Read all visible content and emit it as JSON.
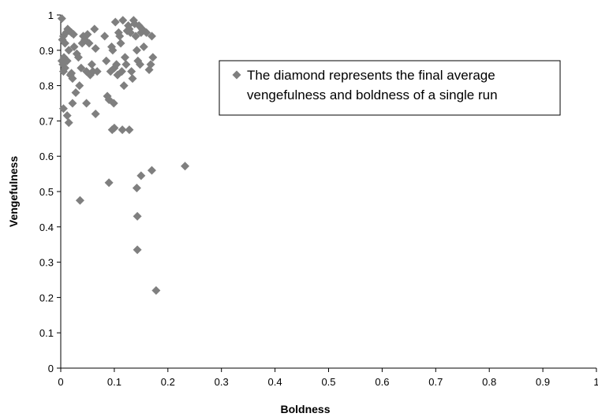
{
  "chart_data": {
    "type": "scatter",
    "title": "",
    "xlabel": "Boldness",
    "ylabel": "Vengefulness",
    "xlim": [
      0,
      1
    ],
    "ylim": [
      0,
      1
    ],
    "x_ticks": [
      "0",
      "0.1",
      "0.2",
      "0.3",
      "0.4",
      "0.5",
      "0.6",
      "0.7",
      "0.8",
      "0.9",
      "1"
    ],
    "y_ticks": [
      "0",
      "0.1",
      "0.2",
      "0.3",
      "0.4",
      "0.5",
      "0.6",
      "0.7",
      "0.8",
      "0.9",
      "1"
    ],
    "grid": false,
    "legend_position": "top-right",
    "legend_lines": [
      "The diamond represents the final average",
      "vengefulness and boldness of a single run"
    ],
    "marker": "diamond",
    "marker_color": "#7f7f7f",
    "points": [
      {
        "x": 0.002,
        "y": 0.99
      },
      {
        "x": 0.003,
        "y": 0.93
      },
      {
        "x": 0.005,
        "y": 0.94
      },
      {
        "x": 0.008,
        "y": 0.92
      },
      {
        "x": 0.01,
        "y": 0.95
      },
      {
        "x": 0.013,
        "y": 0.96
      },
      {
        "x": 0.016,
        "y": 0.955
      },
      {
        "x": 0.02,
        "y": 0.95
      },
      {
        "x": 0.024,
        "y": 0.945
      },
      {
        "x": 0.002,
        "y": 0.87
      },
      {
        "x": 0.004,
        "y": 0.86
      },
      {
        "x": 0.006,
        "y": 0.88
      },
      {
        "x": 0.008,
        "y": 0.85
      },
      {
        "x": 0.005,
        "y": 0.84
      },
      {
        "x": 0.012,
        "y": 0.87
      },
      {
        "x": 0.015,
        "y": 0.9
      },
      {
        "x": 0.018,
        "y": 0.83
      },
      {
        "x": 0.02,
        "y": 0.835
      },
      {
        "x": 0.022,
        "y": 0.82
      },
      {
        "x": 0.025,
        "y": 0.91
      },
      {
        "x": 0.028,
        "y": 0.78
      },
      {
        "x": 0.03,
        "y": 0.89
      },
      {
        "x": 0.033,
        "y": 0.88
      },
      {
        "x": 0.035,
        "y": 0.8
      },
      {
        "x": 0.038,
        "y": 0.85
      },
      {
        "x": 0.04,
        "y": 0.92
      },
      {
        "x": 0.042,
        "y": 0.94
      },
      {
        "x": 0.045,
        "y": 0.93
      },
      {
        "x": 0.048,
        "y": 0.84
      },
      {
        "x": 0.05,
        "y": 0.945
      },
      {
        "x": 0.053,
        "y": 0.92
      },
      {
        "x": 0.055,
        "y": 0.83
      },
      {
        "x": 0.058,
        "y": 0.86
      },
      {
        "x": 0.06,
        "y": 0.84
      },
      {
        "x": 0.063,
        "y": 0.96
      },
      {
        "x": 0.065,
        "y": 0.905
      },
      {
        "x": 0.068,
        "y": 0.84
      },
      {
        "x": 0.005,
        "y": 0.735
      },
      {
        "x": 0.012,
        "y": 0.715
      },
      {
        "x": 0.015,
        "y": 0.695
      },
      {
        "x": 0.022,
        "y": 0.75
      },
      {
        "x": 0.048,
        "y": 0.75
      },
      {
        "x": 0.065,
        "y": 0.72
      },
      {
        "x": 0.082,
        "y": 0.94
      },
      {
        "x": 0.085,
        "y": 0.87
      },
      {
        "x": 0.087,
        "y": 0.77
      },
      {
        "x": 0.09,
        "y": 0.76
      },
      {
        "x": 0.093,
        "y": 0.84
      },
      {
        "x": 0.095,
        "y": 0.91
      },
      {
        "x": 0.097,
        "y": 0.9
      },
      {
        "x": 0.099,
        "y": 0.75
      },
      {
        "x": 0.1,
        "y": 0.85
      },
      {
        "x": 0.102,
        "y": 0.98
      },
      {
        "x": 0.104,
        "y": 0.86
      },
      {
        "x": 0.106,
        "y": 0.83
      },
      {
        "x": 0.108,
        "y": 0.95
      },
      {
        "x": 0.11,
        "y": 0.94
      },
      {
        "x": 0.112,
        "y": 0.92
      },
      {
        "x": 0.114,
        "y": 0.84
      },
      {
        "x": 0.116,
        "y": 0.985
      },
      {
        "x": 0.118,
        "y": 0.8
      },
      {
        "x": 0.12,
        "y": 0.88
      },
      {
        "x": 0.122,
        "y": 0.86
      },
      {
        "x": 0.124,
        "y": 0.955
      },
      {
        "x": 0.126,
        "y": 0.97
      },
      {
        "x": 0.128,
        "y": 0.96
      },
      {
        "x": 0.13,
        "y": 0.95
      },
      {
        "x": 0.132,
        "y": 0.84
      },
      {
        "x": 0.134,
        "y": 0.82
      },
      {
        "x": 0.136,
        "y": 0.985
      },
      {
        "x": 0.138,
        "y": 0.975
      },
      {
        "x": 0.14,
        "y": 0.94
      },
      {
        "x": 0.142,
        "y": 0.9
      },
      {
        "x": 0.144,
        "y": 0.87
      },
      {
        "x": 0.146,
        "y": 0.97
      },
      {
        "x": 0.148,
        "y": 0.86
      },
      {
        "x": 0.15,
        "y": 0.95
      },
      {
        "x": 0.152,
        "y": 0.96
      },
      {
        "x": 0.155,
        "y": 0.91
      },
      {
        "x": 0.16,
        "y": 0.95
      },
      {
        "x": 0.165,
        "y": 0.845
      },
      {
        "x": 0.168,
        "y": 0.86
      },
      {
        "x": 0.17,
        "y": 0.94
      },
      {
        "x": 0.172,
        "y": 0.88
      },
      {
        "x": 0.096,
        "y": 0.675
      },
      {
        "x": 0.1,
        "y": 0.68
      },
      {
        "x": 0.115,
        "y": 0.675
      },
      {
        "x": 0.128,
        "y": 0.675
      },
      {
        "x": 0.036,
        "y": 0.475
      },
      {
        "x": 0.09,
        "y": 0.525
      },
      {
        "x": 0.142,
        "y": 0.51
      },
      {
        "x": 0.15,
        "y": 0.545
      },
      {
        "x": 0.17,
        "y": 0.56
      },
      {
        "x": 0.232,
        "y": 0.572
      },
      {
        "x": 0.143,
        "y": 0.43
      },
      {
        "x": 0.143,
        "y": 0.335
      },
      {
        "x": 0.178,
        "y": 0.22
      }
    ]
  }
}
